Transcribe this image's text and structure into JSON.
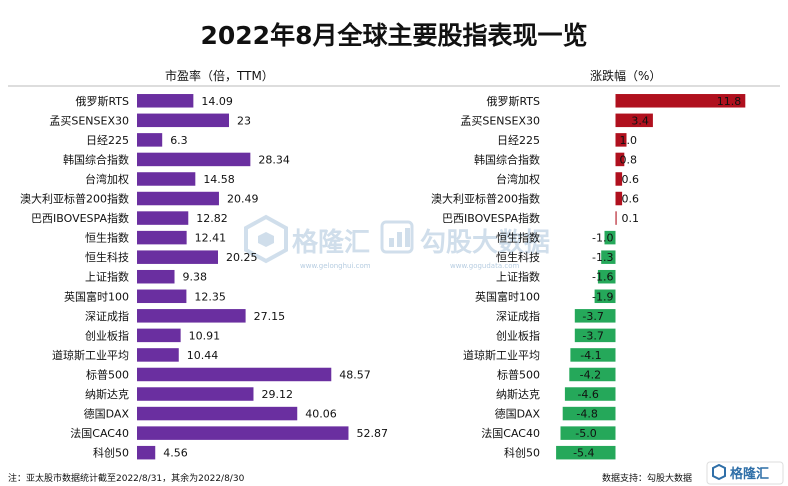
{
  "page": {
    "title": "2022年8月全球主要股指表现一览",
    "footnote": "注：亚太股市数据统计截至2022/8/31，其余为2022/8/30",
    "source": "数据支持：勾股大数据",
    "logo_text": "格隆汇"
  },
  "watermarks": {
    "left_brand": "格隆汇",
    "left_url": "www.gelonghui.com",
    "right_brand": "勾股大数据",
    "right_url": "www.gogudata.com"
  },
  "colors": {
    "pe_bar": "#6a2fa0",
    "change_pos": "#b0101e",
    "change_neg": "#25a85a",
    "text": "#111111"
  },
  "chart_data": [
    {
      "type": "bar",
      "orientation": "horizontal",
      "title": "市盈率（倍，TTM）",
      "categories": [
        "俄罗斯RTS",
        "孟买SENSEX30",
        "日经225",
        "韩国综合指数",
        "台湾加权",
        "澳大利亚标普200指数",
        "巴西IBOVESPA指数",
        "恒生指数",
        "恒生科技",
        "上证指数",
        "英国富时100",
        "深证成指",
        "创业板指",
        "道琼斯工业平均",
        "标普500",
        "纳斯达克",
        "德国DAX",
        "法国CAC40",
        "科创50"
      ],
      "values": [
        14.09,
        23,
        6.3,
        28.34,
        14.58,
        20.49,
        12.82,
        12.41,
        20.25,
        9.38,
        12.35,
        27.15,
        10.91,
        10.44,
        48.57,
        29.12,
        40.06,
        52.87,
        4.56
      ],
      "labels": [
        "14.09",
        "23",
        "6.3",
        "28.34",
        "14.58",
        "20.49",
        "12.82",
        "12.41",
        "20.25",
        "9.38",
        "12.35",
        "27.15",
        "10.91",
        "10.44",
        "48.57",
        "29.12",
        "40.06",
        "52.87",
        "4.56"
      ],
      "xlim": [
        0,
        55
      ]
    },
    {
      "type": "bar",
      "orientation": "horizontal",
      "title": "涨跌幅（%）",
      "categories": [
        "俄罗斯RTS",
        "孟买SENSEX30",
        "日经225",
        "韩国综合指数",
        "台湾加权",
        "澳大利亚标普200指数",
        "巴西IBOVESPA指数",
        "恒生指数",
        "恒生科技",
        "上证指数",
        "英国富时100",
        "深证成指",
        "创业板指",
        "道琼斯工业平均",
        "标普500",
        "纳斯达克",
        "德国DAX",
        "法国CAC40",
        "科创50"
      ],
      "values": [
        11.8,
        3.4,
        1.0,
        0.8,
        0.6,
        0.6,
        0.1,
        -1.0,
        -1.3,
        -1.6,
        -1.9,
        -3.7,
        -3.7,
        -4.1,
        -4.2,
        -4.6,
        -4.8,
        -5.0,
        -5.4
      ],
      "labels": [
        "11.8",
        "3.4",
        "1.0",
        "0.8",
        "0.6",
        "0.6",
        "0.1",
        "-1.0",
        "-1.3",
        "-1.6",
        "-1.9",
        "-3.7",
        "-3.7",
        "-4.1",
        "-4.2",
        "-4.6",
        "-4.8",
        "-5.0",
        "-5.4"
      ],
      "xlim": [
        -6,
        12
      ]
    }
  ]
}
